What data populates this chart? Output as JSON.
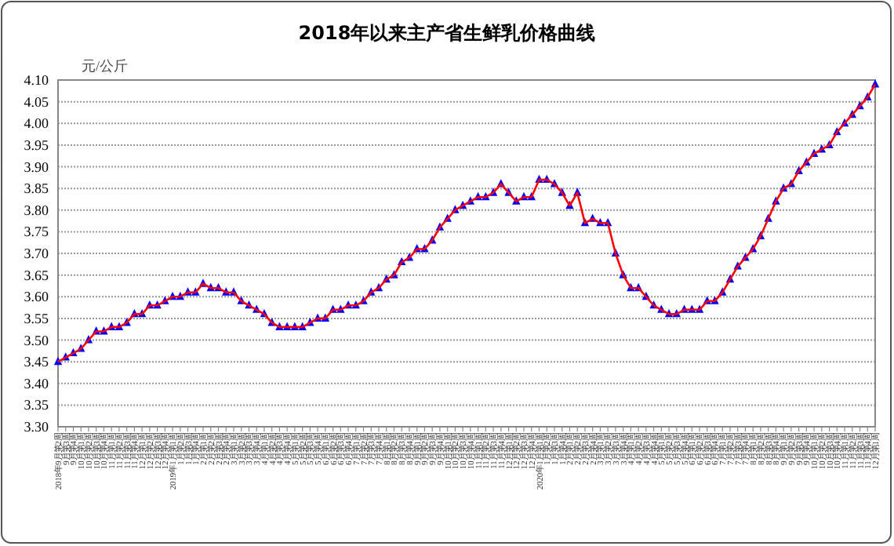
{
  "chart_data": {
    "type": "line",
    "title": "2018年以来主产省生鲜乳价格曲线",
    "ylabel": "元/公斤",
    "categories": [
      "2018年9月第2周",
      "9月第3周",
      "9月第4周",
      "10月第1周",
      "10月第2周",
      "10月第3周",
      "10月第4周",
      "11月第1周",
      "11月第2周",
      "11月第3周",
      "11月第4周",
      "12月第1周",
      "12月第2周",
      "12月第3周",
      "12月第4周",
      "2019年1月第1周",
      "1月第2周",
      "1月第3周",
      "1月第4周",
      "2月第1周",
      "2月第2周",
      "2月第3周",
      "2月第4周",
      "3月第1周",
      "3月第2周",
      "3月第3周",
      "3月第4周",
      "4月第1周",
      "4月第2周",
      "4月第3周",
      "4月第4周",
      "5月第1周",
      "5月第2周",
      "5月第3周",
      "5月第4周",
      "6月第1周",
      "6月第2周",
      "6月第3周",
      "6月第4周",
      "7月第1周",
      "7月第2周",
      "7月第3周",
      "7月第4周",
      "8月第1周",
      "8月第2周",
      "8月第3周",
      "8月第4周",
      "9月第1周",
      "9月第2周",
      "9月第3周",
      "9月第4周",
      "10月第1周",
      "10月第2周",
      "10月第3周",
      "10月第4周",
      "11月第1周",
      "11月第2周",
      "11月第3周",
      "11月第4周",
      "12月第1周",
      "12月第2周",
      "12月第3周",
      "12月第4周",
      "2020年1月第1周",
      "1月第2周",
      "1月第3周",
      "1月第4周",
      "2月第1周",
      "2月第2周",
      "2月第3周",
      "2月第4周",
      "3月第1周",
      "3月第2周",
      "3月第3周",
      "3月第4周",
      "4月第1周",
      "4月第2周",
      "4月第3周",
      "4月第4周",
      "5月第1周",
      "5月第2周",
      "5月第3周",
      "5月第4周",
      "6月第1周",
      "6月第2周",
      "6月第3周",
      "6月第4周",
      "7月第1周",
      "7月第2周",
      "7月第3周",
      "7月第4周",
      "8月第1周",
      "8月第2周",
      "8月第3周",
      "8月第4周",
      "9月第1周",
      "9月第2周",
      "9月第3周",
      "9月第4周",
      "10月第1周",
      "10月第2周",
      "10月第3周",
      "10月第4周",
      "11月第1周",
      "11月第2周",
      "11月第3周",
      "11月第4周",
      "12月第1周"
    ],
    "series": [
      {
        "color": "#ff0000",
        "values": [
          3.45,
          3.46,
          3.47,
          3.48,
          3.5,
          3.52,
          3.52,
          3.53,
          3.53,
          3.54,
          3.56,
          3.56,
          3.58,
          3.58,
          3.59,
          3.6,
          3.6,
          3.61,
          3.61,
          3.63,
          3.62,
          3.62,
          3.61,
          3.61,
          3.59,
          3.58,
          3.57,
          3.56,
          3.54,
          3.53,
          3.53,
          3.53,
          3.53,
          3.54,
          3.55,
          3.55,
          3.57,
          3.57,
          3.58,
          3.58,
          3.59,
          3.61,
          3.62,
          3.64,
          3.65,
          3.68,
          3.69,
          3.71,
          3.71,
          3.73,
          3.76,
          3.78,
          3.8,
          3.81,
          3.82,
          3.83,
          3.83,
          3.84,
          3.86,
          3.84,
          3.82,
          3.83,
          3.83,
          3.87,
          3.87,
          3.86,
          3.84,
          3.81,
          3.84,
          3.77,
          3.78,
          3.77,
          3.77,
          3.7,
          3.65,
          3.62,
          3.62,
          3.6,
          3.58,
          3.57,
          3.56,
          3.56,
          3.57,
          3.57,
          3.57,
          3.59,
          3.59,
          3.61,
          3.64,
          3.67,
          3.69,
          3.71,
          3.74,
          3.78,
          3.82,
          3.85,
          3.86,
          3.89,
          3.91,
          3.93,
          3.94,
          3.95,
          3.98,
          4.0,
          4.02,
          4.04,
          4.06,
          4.09
        ]
      }
    ],
    "marker": "triangle",
    "line_style": "solid",
    "grid": "y",
    "ylim": [
      3.3,
      4.1
    ],
    "yticks": [
      {
        "value": 3.3,
        "label": "3.30"
      },
      {
        "value": 3.35,
        "label": "3.35"
      },
      {
        "value": 3.4,
        "label": "3.40"
      },
      {
        "value": 3.45,
        "label": "3.45"
      },
      {
        "value": 3.5,
        "label": "3.50"
      },
      {
        "value": 3.55,
        "label": "3.55"
      },
      {
        "value": 3.6,
        "label": "3.60"
      },
      {
        "value": 3.65,
        "label": "3.65"
      },
      {
        "value": 3.7,
        "label": "3.70"
      },
      {
        "value": 3.75,
        "label": "3.75"
      },
      {
        "value": 3.8,
        "label": "3.80"
      },
      {
        "value": 3.85,
        "label": "3.85"
      },
      {
        "value": 3.9,
        "label": "3.90"
      },
      {
        "value": 3.95,
        "label": "3.95"
      },
      {
        "value": 4.0,
        "label": "4.00"
      },
      {
        "value": 4.05,
        "label": "4.05"
      },
      {
        "value": 4.1,
        "label": "4.10"
      }
    ]
  }
}
